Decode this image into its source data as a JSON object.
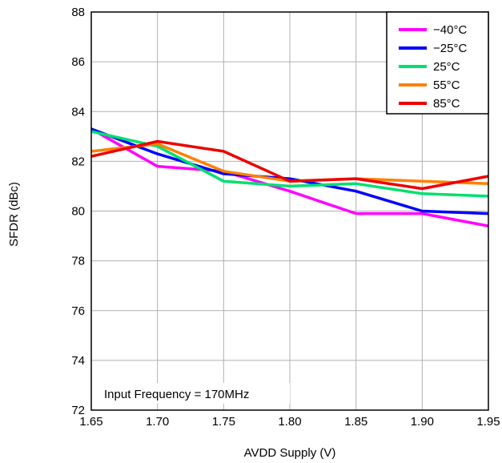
{
  "chart_data": {
    "type": "line",
    "xlabel": "AVDD Supply (V)",
    "ylabel": "SFDR (dBc)",
    "xlim": [
      1.65,
      1.95
    ],
    "ylim": [
      72,
      88
    ],
    "xticks": [
      "1.65",
      "1.70",
      "1.75",
      "1.80",
      "1.85",
      "1.90",
      "1.95"
    ],
    "yticks": [
      "72",
      "74",
      "76",
      "78",
      "80",
      "82",
      "84",
      "86",
      "88"
    ],
    "grid": true,
    "legend_position": "top-right",
    "annotation": "Input Frequency = 170MHz",
    "x": [
      1.65,
      1.7,
      1.75,
      1.8,
      1.85,
      1.9,
      1.95
    ],
    "series": [
      {
        "name": "−40°C",
        "color": "#ff00ff",
        "values": [
          83.3,
          81.8,
          81.6,
          80.8,
          79.9,
          79.9,
          79.4
        ]
      },
      {
        "name": "−25°C",
        "color": "#0000ff",
        "values": [
          83.3,
          82.3,
          81.5,
          81.3,
          80.8,
          80.0,
          79.9
        ]
      },
      {
        "name": "25°C",
        "color": "#00e070",
        "values": [
          83.2,
          82.6,
          81.2,
          81.0,
          81.1,
          80.7,
          80.6
        ]
      },
      {
        "name": "55°C",
        "color": "#ff8000",
        "values": [
          82.4,
          82.7,
          81.6,
          81.2,
          81.3,
          81.2,
          81.1
        ]
      },
      {
        "name": "85°C",
        "color": "#ee0000",
        "values": [
          82.2,
          82.8,
          82.4,
          81.2,
          81.3,
          80.9,
          81.4
        ]
      }
    ]
  }
}
